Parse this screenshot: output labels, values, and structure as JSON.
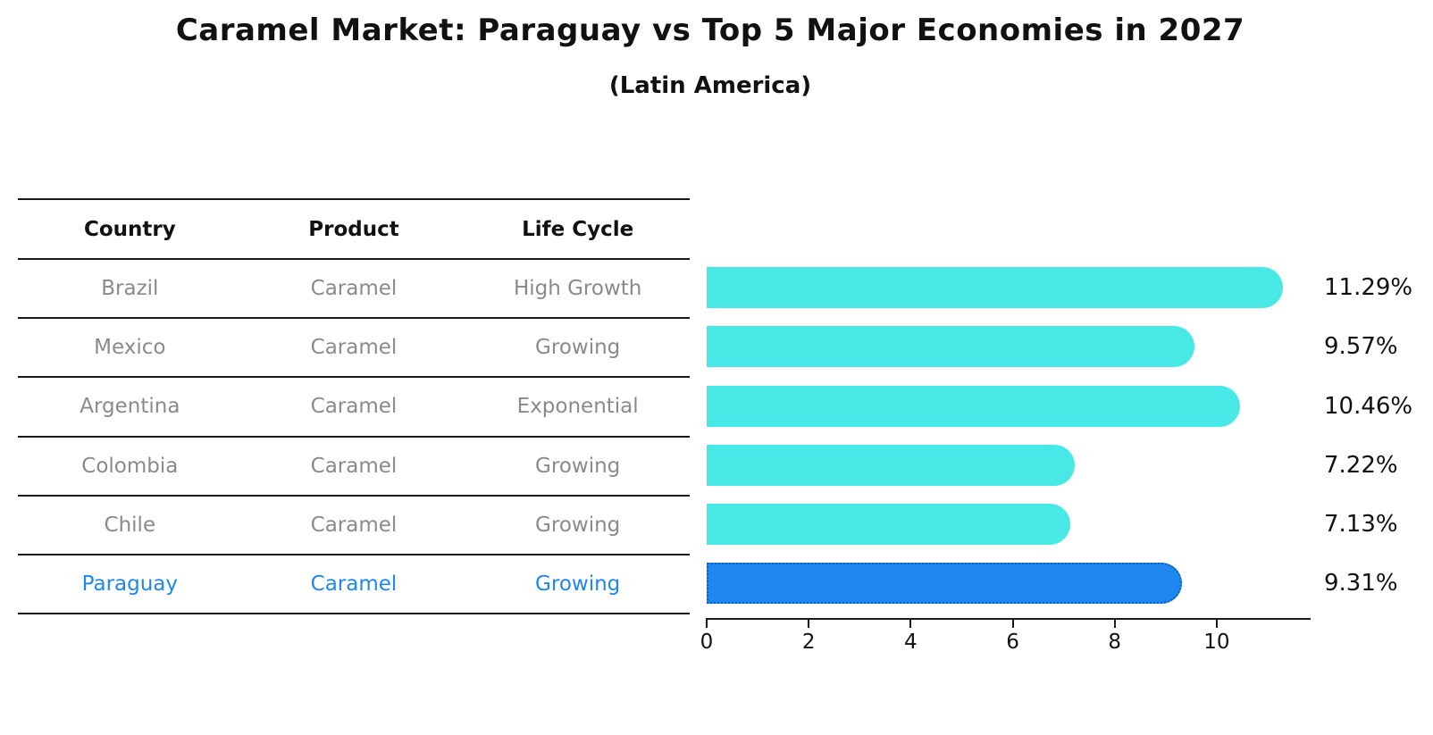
{
  "title": "Caramel Market: Paraguay vs Top 5 Major Economies in 2027",
  "subtitle": "(Latin America)",
  "table": {
    "headers": [
      "Country",
      "Product",
      "Life Cycle"
    ],
    "rows": [
      {
        "cells": [
          "Brazil",
          "Caramel",
          "High Growth"
        ],
        "highlight": false
      },
      {
        "cells": [
          "Mexico",
          "Caramel",
          "Growing"
        ],
        "highlight": false
      },
      {
        "cells": [
          "Argentina",
          "Caramel",
          "Exponential"
        ],
        "highlight": false
      },
      {
        "cells": [
          "Colombia",
          "Caramel",
          "Growing"
        ],
        "highlight": false
      },
      {
        "cells": [
          "Chile",
          "Caramel",
          "Growing"
        ],
        "highlight": false
      },
      {
        "cells": [
          "Paraguay",
          "Caramel",
          "Growing"
        ],
        "highlight": true
      }
    ]
  },
  "chart_data": {
    "type": "bar",
    "orientation": "horizontal",
    "title": "Caramel Market: Paraguay vs Top 5 Major Economies in 2027",
    "subtitle": "(Latin America)",
    "categories": [
      "Brazil",
      "Mexico",
      "Argentina",
      "Colombia",
      "Chile",
      "Paraguay"
    ],
    "values": [
      11.29,
      9.57,
      10.46,
      7.22,
      7.13,
      9.31
    ],
    "value_labels": [
      "11.29%",
      "9.57%",
      "10.46%",
      "7.22%",
      "7.13%",
      "9.31%"
    ],
    "highlight_category": "Paraguay",
    "highlight_index": 5,
    "xlim": [
      0,
      11.84
    ],
    "xticks": [
      0,
      2,
      4,
      6,
      8,
      10
    ],
    "grid": false,
    "legend": false
  },
  "colors": {
    "bar": "#48e8e6",
    "bar_highlight": "#1e87f0",
    "bar_highlight_border": "#0d5fc0",
    "row_text": "#8a8a8a",
    "highlight_text": "#1e87f0",
    "heading_text": "#111111",
    "axis": "#1a1a1a"
  }
}
